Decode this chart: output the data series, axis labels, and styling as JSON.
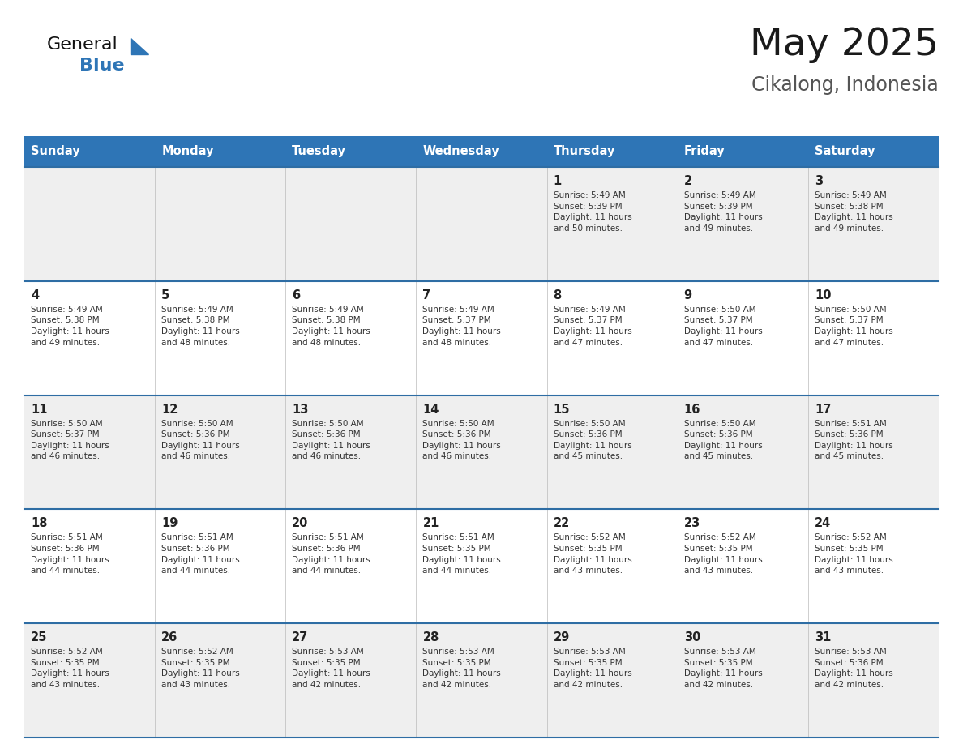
{
  "title": "May 2025",
  "subtitle": "Cikalong, Indonesia",
  "days_of_week": [
    "Sunday",
    "Monday",
    "Tuesday",
    "Wednesday",
    "Thursday",
    "Friday",
    "Saturday"
  ],
  "header_bg": "#2E75B6",
  "header_text": "#FFFFFF",
  "row_bg_odd": "#EFEFEF",
  "row_bg_even": "#FFFFFF",
  "cell_border_color": "#2E6DA4",
  "day_num_color": "#222222",
  "info_text_color": "#333333",
  "logo_general_color": "#111111",
  "logo_blue_color": "#2E75B6",
  "calendar_data": [
    {
      "day": 1,
      "col": 4,
      "row": 0,
      "sunrise": "5:49 AM",
      "sunset": "5:39 PM",
      "daylight_hours": 11,
      "daylight_minutes": 50
    },
    {
      "day": 2,
      "col": 5,
      "row": 0,
      "sunrise": "5:49 AM",
      "sunset": "5:39 PM",
      "daylight_hours": 11,
      "daylight_minutes": 49
    },
    {
      "day": 3,
      "col": 6,
      "row": 0,
      "sunrise": "5:49 AM",
      "sunset": "5:38 PM",
      "daylight_hours": 11,
      "daylight_minutes": 49
    },
    {
      "day": 4,
      "col": 0,
      "row": 1,
      "sunrise": "5:49 AM",
      "sunset": "5:38 PM",
      "daylight_hours": 11,
      "daylight_minutes": 49
    },
    {
      "day": 5,
      "col": 1,
      "row": 1,
      "sunrise": "5:49 AM",
      "sunset": "5:38 PM",
      "daylight_hours": 11,
      "daylight_minutes": 48
    },
    {
      "day": 6,
      "col": 2,
      "row": 1,
      "sunrise": "5:49 AM",
      "sunset": "5:38 PM",
      "daylight_hours": 11,
      "daylight_minutes": 48
    },
    {
      "day": 7,
      "col": 3,
      "row": 1,
      "sunrise": "5:49 AM",
      "sunset": "5:37 PM",
      "daylight_hours": 11,
      "daylight_minutes": 48
    },
    {
      "day": 8,
      "col": 4,
      "row": 1,
      "sunrise": "5:49 AM",
      "sunset": "5:37 PM",
      "daylight_hours": 11,
      "daylight_minutes": 47
    },
    {
      "day": 9,
      "col": 5,
      "row": 1,
      "sunrise": "5:50 AM",
      "sunset": "5:37 PM",
      "daylight_hours": 11,
      "daylight_minutes": 47
    },
    {
      "day": 10,
      "col": 6,
      "row": 1,
      "sunrise": "5:50 AM",
      "sunset": "5:37 PM",
      "daylight_hours": 11,
      "daylight_minutes": 47
    },
    {
      "day": 11,
      "col": 0,
      "row": 2,
      "sunrise": "5:50 AM",
      "sunset": "5:37 PM",
      "daylight_hours": 11,
      "daylight_minutes": 46
    },
    {
      "day": 12,
      "col": 1,
      "row": 2,
      "sunrise": "5:50 AM",
      "sunset": "5:36 PM",
      "daylight_hours": 11,
      "daylight_minutes": 46
    },
    {
      "day": 13,
      "col": 2,
      "row": 2,
      "sunrise": "5:50 AM",
      "sunset": "5:36 PM",
      "daylight_hours": 11,
      "daylight_minutes": 46
    },
    {
      "day": 14,
      "col": 3,
      "row": 2,
      "sunrise": "5:50 AM",
      "sunset": "5:36 PM",
      "daylight_hours": 11,
      "daylight_minutes": 46
    },
    {
      "day": 15,
      "col": 4,
      "row": 2,
      "sunrise": "5:50 AM",
      "sunset": "5:36 PM",
      "daylight_hours": 11,
      "daylight_minutes": 45
    },
    {
      "day": 16,
      "col": 5,
      "row": 2,
      "sunrise": "5:50 AM",
      "sunset": "5:36 PM",
      "daylight_hours": 11,
      "daylight_minutes": 45
    },
    {
      "day": 17,
      "col": 6,
      "row": 2,
      "sunrise": "5:51 AM",
      "sunset": "5:36 PM",
      "daylight_hours": 11,
      "daylight_minutes": 45
    },
    {
      "day": 18,
      "col": 0,
      "row": 3,
      "sunrise": "5:51 AM",
      "sunset": "5:36 PM",
      "daylight_hours": 11,
      "daylight_minutes": 44
    },
    {
      "day": 19,
      "col": 1,
      "row": 3,
      "sunrise": "5:51 AM",
      "sunset": "5:36 PM",
      "daylight_hours": 11,
      "daylight_minutes": 44
    },
    {
      "day": 20,
      "col": 2,
      "row": 3,
      "sunrise": "5:51 AM",
      "sunset": "5:36 PM",
      "daylight_hours": 11,
      "daylight_minutes": 44
    },
    {
      "day": 21,
      "col": 3,
      "row": 3,
      "sunrise": "5:51 AM",
      "sunset": "5:35 PM",
      "daylight_hours": 11,
      "daylight_minutes": 44
    },
    {
      "day": 22,
      "col": 4,
      "row": 3,
      "sunrise": "5:52 AM",
      "sunset": "5:35 PM",
      "daylight_hours": 11,
      "daylight_minutes": 43
    },
    {
      "day": 23,
      "col": 5,
      "row": 3,
      "sunrise": "5:52 AM",
      "sunset": "5:35 PM",
      "daylight_hours": 11,
      "daylight_minutes": 43
    },
    {
      "day": 24,
      "col": 6,
      "row": 3,
      "sunrise": "5:52 AM",
      "sunset": "5:35 PM",
      "daylight_hours": 11,
      "daylight_minutes": 43
    },
    {
      "day": 25,
      "col": 0,
      "row": 4,
      "sunrise": "5:52 AM",
      "sunset": "5:35 PM",
      "daylight_hours": 11,
      "daylight_minutes": 43
    },
    {
      "day": 26,
      "col": 1,
      "row": 4,
      "sunrise": "5:52 AM",
      "sunset": "5:35 PM",
      "daylight_hours": 11,
      "daylight_minutes": 43
    },
    {
      "day": 27,
      "col": 2,
      "row": 4,
      "sunrise": "5:53 AM",
      "sunset": "5:35 PM",
      "daylight_hours": 11,
      "daylight_minutes": 42
    },
    {
      "day": 28,
      "col": 3,
      "row": 4,
      "sunrise": "5:53 AM",
      "sunset": "5:35 PM",
      "daylight_hours": 11,
      "daylight_minutes": 42
    },
    {
      "day": 29,
      "col": 4,
      "row": 4,
      "sunrise": "5:53 AM",
      "sunset": "5:35 PM",
      "daylight_hours": 11,
      "daylight_minutes": 42
    },
    {
      "day": 30,
      "col": 5,
      "row": 4,
      "sunrise": "5:53 AM",
      "sunset": "5:35 PM",
      "daylight_hours": 11,
      "daylight_minutes": 42
    },
    {
      "day": 31,
      "col": 6,
      "row": 4,
      "sunrise": "5:53 AM",
      "sunset": "5:36 PM",
      "daylight_hours": 11,
      "daylight_minutes": 42
    }
  ]
}
